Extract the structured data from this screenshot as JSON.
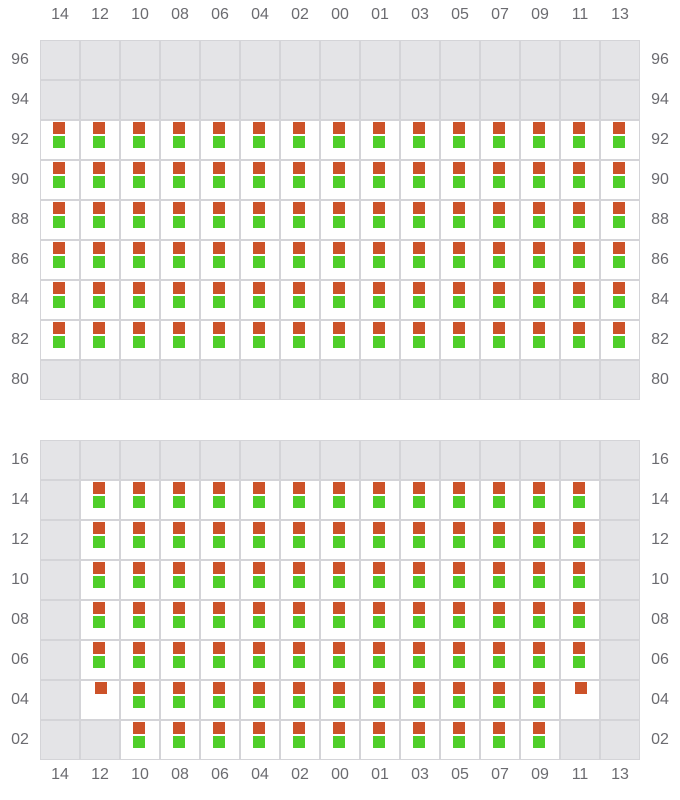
{
  "colors": {
    "present": "#cc5229",
    "ok": "#4fcf2a",
    "empty": "#e4e4e7",
    "border": "#d4d4d8"
  },
  "columns": [
    "14",
    "12",
    "10",
    "08",
    "06",
    "04",
    "02",
    "00",
    "01",
    "03",
    "05",
    "07",
    "09",
    "11",
    "13"
  ],
  "panels": [
    {
      "rows": [
        {
          "label": "96",
          "cells": [
            "g",
            "g",
            "g",
            "g",
            "g",
            "g",
            "g",
            "g",
            "g",
            "g",
            "g",
            "g",
            "g",
            "g",
            "g"
          ]
        },
        {
          "label": "94",
          "cells": [
            "g",
            "g",
            "g",
            "g",
            "g",
            "g",
            "g",
            "g",
            "g",
            "g",
            "g",
            "g",
            "g",
            "g",
            "g"
          ]
        },
        {
          "label": "92",
          "cells": [
            "rg",
            "rg",
            "rg",
            "rg",
            "rg",
            "rg",
            "rg",
            "rg",
            "rg",
            "rg",
            "rg",
            "rg",
            "rg",
            "rg",
            "rg"
          ]
        },
        {
          "label": "90",
          "cells": [
            "rg",
            "rg",
            "rg",
            "rg",
            "rg",
            "rg",
            "rg",
            "rg",
            "rg",
            "rg",
            "rg",
            "rg",
            "rg",
            "rg",
            "rg"
          ]
        },
        {
          "label": "88",
          "cells": [
            "rg",
            "rg",
            "rg",
            "rg",
            "rg",
            "rg",
            "rg",
            "rg",
            "rg",
            "rg",
            "rg",
            "rg",
            "rg",
            "rg",
            "rg"
          ]
        },
        {
          "label": "86",
          "cells": [
            "rg",
            "rg",
            "rg",
            "rg",
            "rg",
            "rg",
            "rg",
            "rg",
            "rg",
            "rg",
            "rg",
            "rg",
            "rg",
            "rg",
            "rg"
          ]
        },
        {
          "label": "84",
          "cells": [
            "rg",
            "rg",
            "rg",
            "rg",
            "rg",
            "rg",
            "rg",
            "rg",
            "rg",
            "rg",
            "rg",
            "rg",
            "rg",
            "rg",
            "rg"
          ]
        },
        {
          "label": "82",
          "cells": [
            "rg",
            "rg",
            "rg",
            "rg",
            "rg",
            "rg",
            "rg",
            "rg",
            "rg",
            "rg",
            "rg",
            "rg",
            "rg",
            "rg",
            "rg"
          ]
        },
        {
          "label": "80",
          "cells": [
            "g",
            "g",
            "g",
            "g",
            "g",
            "g",
            "g",
            "g",
            "g",
            "g",
            "g",
            "g",
            "g",
            "g",
            "g"
          ]
        }
      ]
    },
    {
      "rows": [
        {
          "label": "16",
          "cells": [
            "g",
            "g",
            "g",
            "g",
            "g",
            "g",
            "g",
            "g",
            "g",
            "g",
            "g",
            "g",
            "g",
            "g",
            "g"
          ]
        },
        {
          "label": "14",
          "cells": [
            "g",
            "rg",
            "rg",
            "rg",
            "rg",
            "rg",
            "rg",
            "rg",
            "rg",
            "rg",
            "rg",
            "rg",
            "rg",
            "rg",
            "g"
          ]
        },
        {
          "label": "12",
          "cells": [
            "g",
            "rg",
            "rg",
            "rg",
            "rg",
            "rg",
            "rg",
            "rg",
            "rg",
            "rg",
            "rg",
            "rg",
            "rg",
            "rg",
            "g"
          ]
        },
        {
          "label": "10",
          "cells": [
            "g",
            "rg",
            "rg",
            "rg",
            "rg",
            "rg",
            "rg",
            "rg",
            "rg",
            "rg",
            "rg",
            "rg",
            "rg",
            "rg",
            "g"
          ]
        },
        {
          "label": "08",
          "cells": [
            "g",
            "rg",
            "rg",
            "rg",
            "rg",
            "rg",
            "rg",
            "rg",
            "rg",
            "rg",
            "rg",
            "rg",
            "rg",
            "rg",
            "g"
          ]
        },
        {
          "label": "06",
          "cells": [
            "g",
            "rg",
            "rg",
            "rg",
            "rg",
            "rg",
            "rg",
            "rg",
            "rg",
            "rg",
            "rg",
            "rg",
            "rg",
            "rg",
            "g"
          ]
        },
        {
          "label": "04",
          "cells": [
            "g",
            "r",
            "rg",
            "rg",
            "rg",
            "rg",
            "rg",
            "rg",
            "rg",
            "rg",
            "rg",
            "rg",
            "rg",
            "r",
            "g"
          ]
        },
        {
          "label": "02",
          "cells": [
            "g",
            "g",
            "rg",
            "rg",
            "rg",
            "rg",
            "rg",
            "rg",
            "rg",
            "rg",
            "rg",
            "rg",
            "rg",
            "g",
            "g"
          ]
        }
      ]
    }
  ]
}
